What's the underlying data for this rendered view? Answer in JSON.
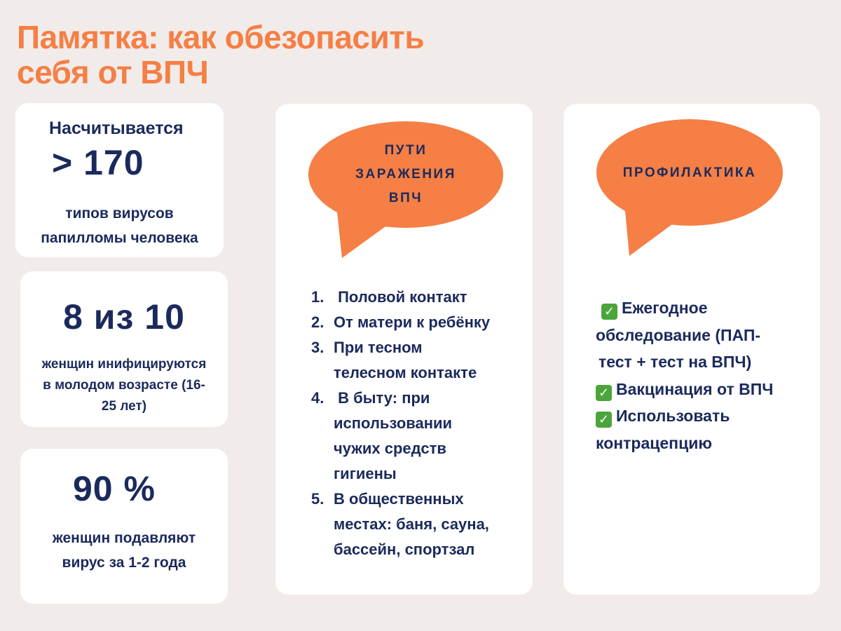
{
  "title": {
    "line1": "Памятка: как обезопасить",
    "line2": "себя от ВПЧ"
  },
  "stat1": {
    "lead": "Насчитывается",
    "value": "> 170",
    "desc_line1": "типов вирусов",
    "desc_line2": "папилломы человека"
  },
  "stat2": {
    "value": "8 из 10",
    "desc_line1": "женщин инифицируются",
    "desc_line2": "в молодом возрасте (16-",
    "desc_line3": "25 лет)"
  },
  "stat3": {
    "value": "90 %",
    "desc_line1": "женщин подавляют",
    "desc_line2": "вирус за 1-2 года"
  },
  "transmission": {
    "bubble_line1": "ПУТИ",
    "bubble_line2": "ЗАРАЖЕНИЯ",
    "bubble_line3": "ВПЧ",
    "items": [
      {
        "num": "1.",
        "lines": [
          " Половой контакт"
        ]
      },
      {
        "num": "2.",
        "lines": [
          "От матери к ребёнку"
        ]
      },
      {
        "num": "3.",
        "lines": [
          "При тесном",
          "телесном контакте"
        ]
      },
      {
        "num": "4.",
        "lines": [
          " В быту: при",
          "использовании",
          "чужих средств",
          "гигиены"
        ]
      },
      {
        "num": "5.",
        "lines": [
          "В общественных",
          "местах: баня, сауна,",
          "бассейн, спортзал"
        ]
      }
    ]
  },
  "prevention": {
    "bubble_label": "ПРОФИЛАКТИКА",
    "check_icon": "white-check-mark-green-box",
    "items": [
      {
        "line1": "Ежегодное",
        "line2": "обследование (ПАП-",
        "line3": "тест + тест на ВПЧ)"
      },
      {
        "line1": "Вакцинация от ВПЧ"
      },
      {
        "line1": "Использовать",
        "line2": "контрацепцию"
      }
    ]
  },
  "colors": {
    "accent": "#f57f45",
    "navy": "#1b2a5c",
    "background": "#f1ece9",
    "check": "#4aa53b"
  }
}
